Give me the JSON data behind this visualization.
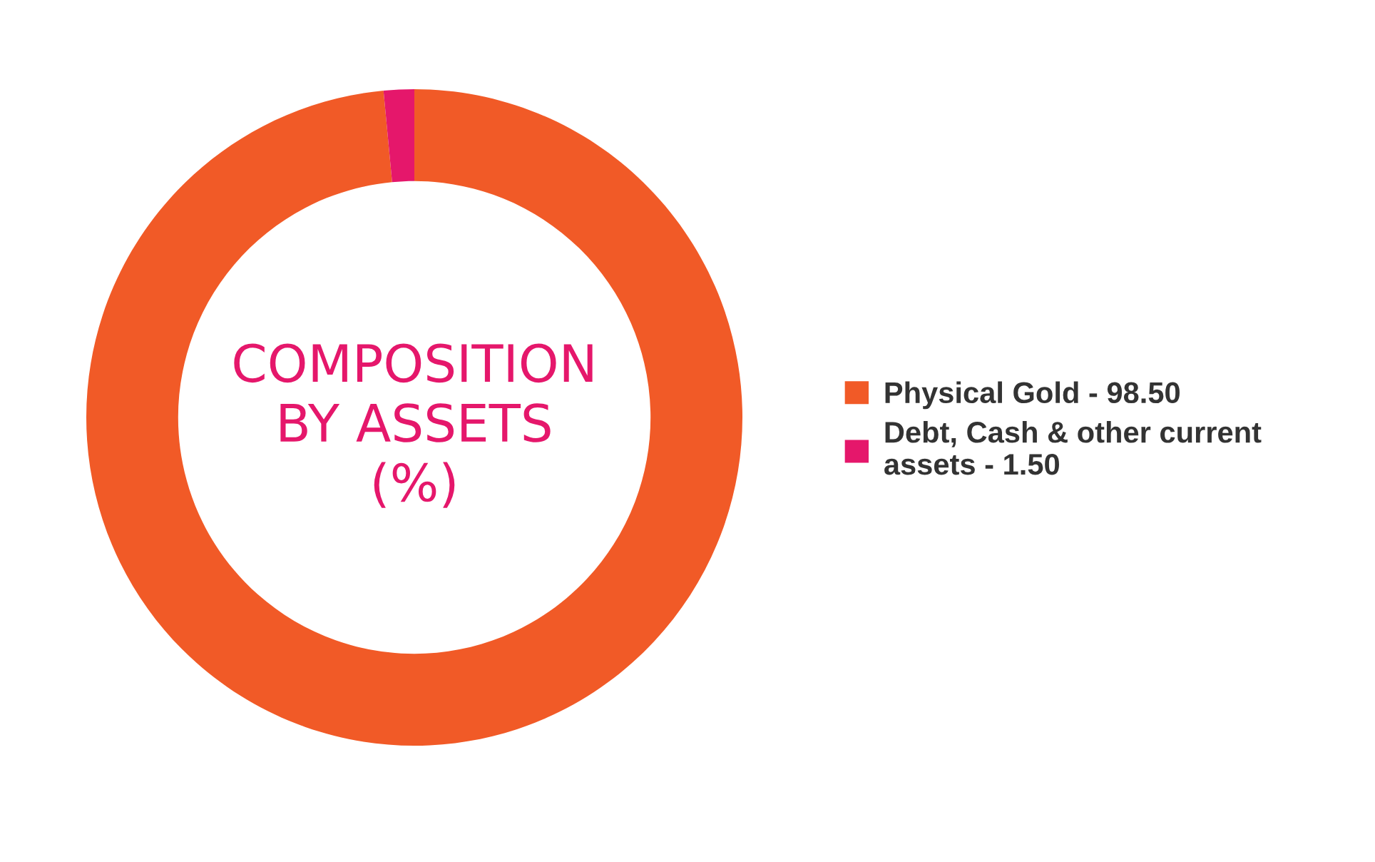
{
  "chart_data": {
    "type": "donut",
    "title": "COMPOSITION\nBY ASSETS\n(%)",
    "categories": [
      "Physical Gold - 98.50",
      "Debt, Cash & other current\nassets - 1.50"
    ],
    "values": [
      98.5,
      1.5
    ],
    "colors": [
      "#f15a27",
      "#e5176b"
    ],
    "legend": "right"
  }
}
